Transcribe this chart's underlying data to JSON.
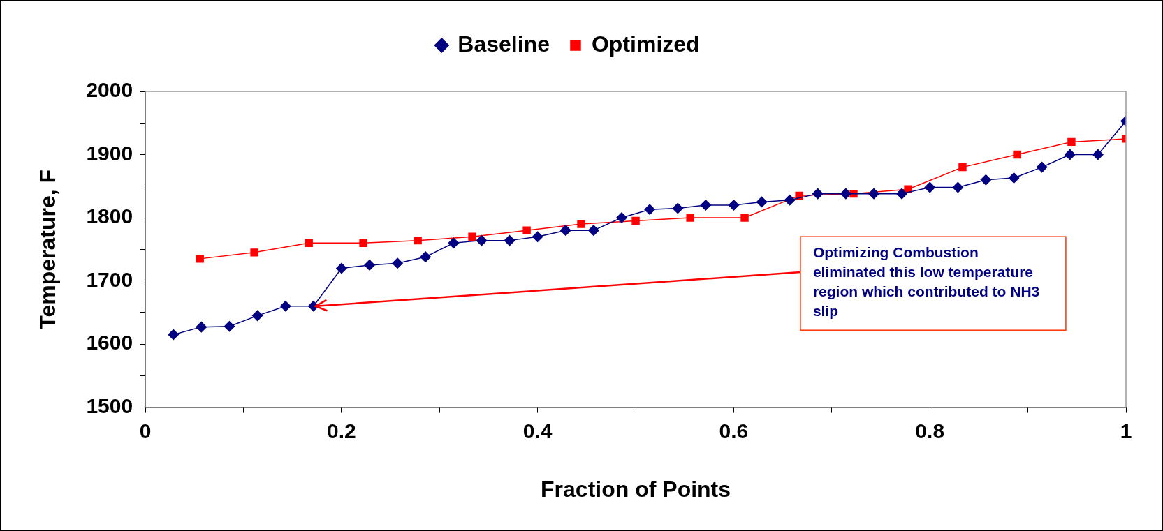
{
  "chart_data": {
    "type": "line",
    "xlabel": "Fraction of Points",
    "ylabel": "Temperature, F",
    "xlim": [
      0,
      1
    ],
    "xticks": [
      0,
      {
        "value": 0.1,
        "label": null
      },
      0.2,
      {
        "value": 0.3,
        "label": null
      },
      0.4,
      {
        "value": 0.5,
        "label": null
      },
      0.6,
      {
        "value": 0.7,
        "label": null
      },
      0.8,
      {
        "value": 0.9,
        "label": null
      },
      1
    ],
    "ylim": [
      1500,
      2000
    ],
    "yticks": [
      1500,
      {
        "value": 1550,
        "label": null
      },
      1600,
      {
        "value": 1650,
        "label": null
      },
      1700,
      {
        "value": 1750,
        "label": null
      },
      1800,
      {
        "value": 1850,
        "label": null
      },
      1900,
      {
        "value": 1950,
        "label": null
      },
      2000
    ],
    "grid": false,
    "legend": "top",
    "line_style": "solid",
    "series": [
      {
        "name": "Baseline",
        "color": "#000080",
        "marker": "diamond",
        "x": [
          0.0286,
          0.0571,
          0.0857,
          0.1143,
          0.1429,
          0.1714,
          0.2,
          0.2286,
          0.2571,
          0.2857,
          0.3143,
          0.3429,
          0.3714,
          0.4,
          0.4286,
          0.4571,
          0.4857,
          0.5143,
          0.5429,
          0.5714,
          0.6,
          0.6286,
          0.6571,
          0.6857,
          0.7143,
          0.7429,
          0.7714,
          0.8,
          0.8286,
          0.8571,
          0.8857,
          0.9143,
          0.9429,
          0.9714,
          1
        ],
        "values": [
          1615,
          1627,
          1628,
          1645,
          1660,
          1660,
          1720,
          1725,
          1728,
          1738,
          1760,
          1764,
          1764,
          1770,
          1780,
          1780,
          1800,
          1813,
          1815,
          1820,
          1820,
          1825,
          1828,
          1838,
          1838,
          1838,
          1838,
          1848,
          1848,
          1860,
          1863,
          1880,
          1900,
          1900,
          1953
        ]
      },
      {
        "name": "Optimized",
        "color": "#ff0000",
        "marker": "square",
        "x": [
          0.0556,
          0.1111,
          0.1667,
          0.2222,
          0.2778,
          0.3333,
          0.3889,
          0.4444,
          0.5,
          0.5556,
          0.6111,
          0.6667,
          0.7222,
          0.7778,
          0.8333,
          0.8889,
          0.9444,
          1
        ],
        "values": [
          1735,
          1745,
          1760,
          1760,
          1764,
          1770,
          1780,
          1790,
          1795,
          1800,
          1800,
          1835,
          1838,
          1845,
          1880,
          1900,
          1920,
          1925
        ]
      }
    ],
    "annotations": [
      {
        "text": "Optimizing Combustion eliminated this low temperature region which contributed to NH3 slip",
        "x": 0.1714,
        "y": 1660
      }
    ]
  }
}
